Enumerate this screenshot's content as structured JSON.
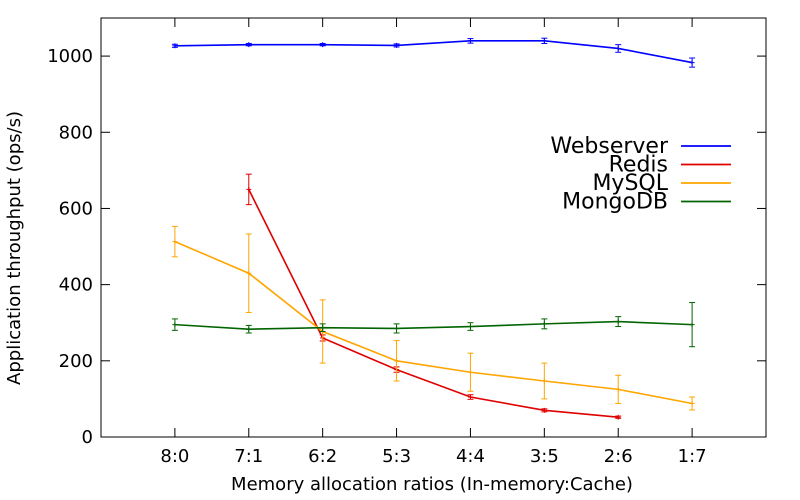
{
  "chart_data": {
    "type": "line",
    "xlabel": "Memory allocation ratios (In-memory:Cache)",
    "ylabel": "Application throughput (ops/s)",
    "categories": [
      "8:0",
      "7:1",
      "6:2",
      "5:3",
      "4:4",
      "3:5",
      "2:6",
      "1:7"
    ],
    "ylim": [
      0,
      1100
    ],
    "yticks": [
      0,
      200,
      400,
      600,
      800,
      1000
    ],
    "grid": false,
    "legend_position": "right",
    "series": [
      {
        "name": "Webserver",
        "color": "#0000ff",
        "values": [
          1027,
          1030,
          1030,
          1028,
          1040,
          1040,
          1020,
          983
        ],
        "errors": [
          4,
          3,
          3,
          4,
          6,
          7,
          10,
          12
        ]
      },
      {
        "name": "Redis",
        "color": "#e00000",
        "values": [
          null,
          650,
          260,
          177,
          105,
          70,
          52,
          null
        ],
        "errors": [
          null,
          40,
          8,
          7,
          6,
          4,
          3,
          null
        ]
      },
      {
        "name": "MySQL",
        "color": "#ffa500",
        "values": [
          513,
          430,
          277,
          200,
          170,
          147,
          125,
          88
        ],
        "errors": [
          40,
          103,
          83,
          53,
          50,
          47,
          37,
          17
        ]
      },
      {
        "name": "MongoDB",
        "color": "#006400",
        "values": [
          295,
          283,
          287,
          285,
          290,
          297,
          303,
          295
        ],
        "errors": [
          15,
          10,
          10,
          12,
          10,
          13,
          13,
          58
        ]
      }
    ]
  }
}
